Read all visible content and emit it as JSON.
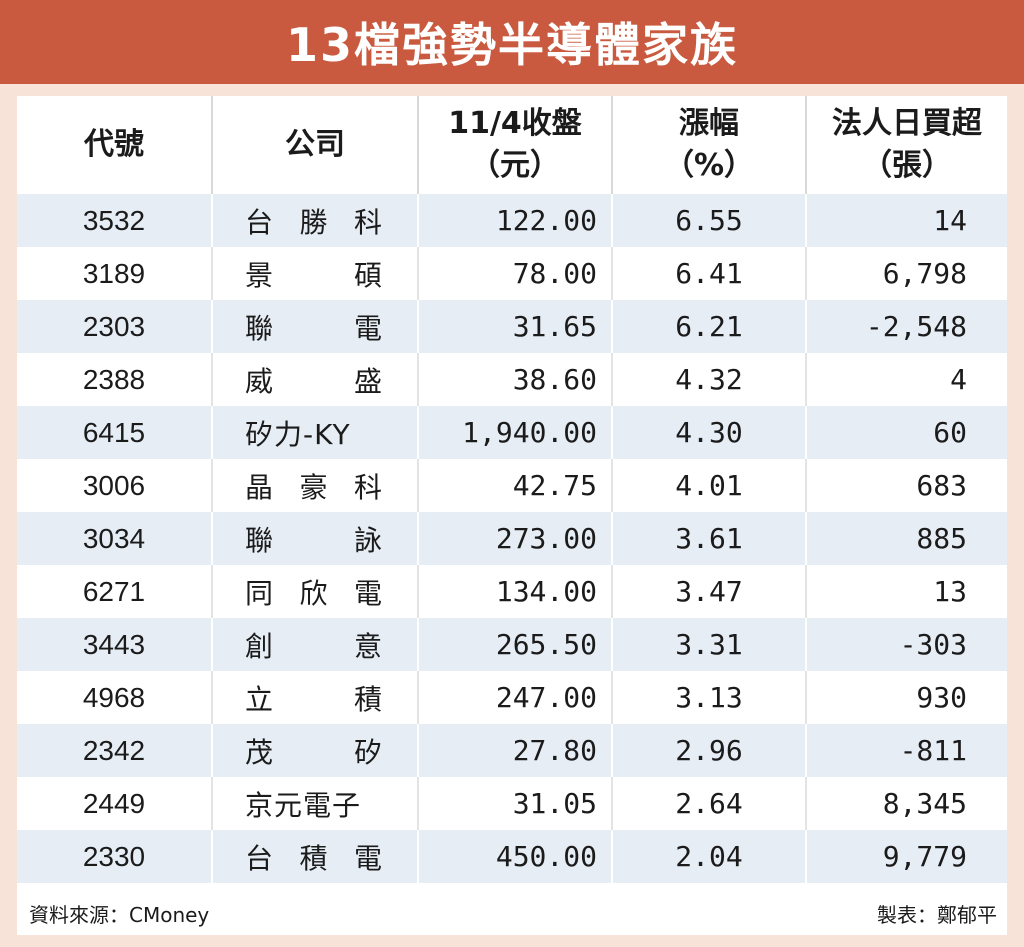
{
  "title": "13檔強勢半導體家族",
  "headers": {
    "code": "代號",
    "company": "公司",
    "close_line1": "11/4收盤",
    "close_line2": "（元）",
    "change_line1": "漲幅",
    "change_line2": "（%）",
    "inst_line1": "法人日買超",
    "inst_line2": "（張）"
  },
  "rows": [
    {
      "code": "3532",
      "name": "台勝科",
      "close": "122.00",
      "change": "6.55",
      "inst": "14"
    },
    {
      "code": "3189",
      "name": "景碩",
      "close": "78.00",
      "change": "6.41",
      "inst": "6,798"
    },
    {
      "code": "2303",
      "name": "聯電",
      "close": "31.65",
      "change": "6.21",
      "inst": "-2,548"
    },
    {
      "code": "2388",
      "name": "威盛",
      "close": "38.60",
      "change": "4.32",
      "inst": "4"
    },
    {
      "code": "6415",
      "name": "矽力-KY",
      "close": "1,940.00",
      "change": "4.30",
      "inst": "60"
    },
    {
      "code": "3006",
      "name": "晶豪科",
      "close": "42.75",
      "change": "4.01",
      "inst": "683"
    },
    {
      "code": "3034",
      "name": "聯詠",
      "close": "273.00",
      "change": "3.61",
      "inst": "885"
    },
    {
      "code": "6271",
      "name": "同欣電",
      "close": "134.00",
      "change": "3.47",
      "inst": "13"
    },
    {
      "code": "3443",
      "name": "創意",
      "close": "265.50",
      "change": "3.31",
      "inst": "-303"
    },
    {
      "code": "4968",
      "name": "立積",
      "close": "247.00",
      "change": "3.13",
      "inst": "930"
    },
    {
      "code": "2342",
      "name": "茂矽",
      "close": "27.80",
      "change": "2.96",
      "inst": "-811"
    },
    {
      "code": "2449",
      "name": "京元電子",
      "close": "31.05",
      "change": "2.64",
      "inst": "8,345"
    },
    {
      "code": "2330",
      "name": "台積電",
      "close": "450.00",
      "change": "2.04",
      "inst": "9,779"
    }
  ],
  "footer": {
    "source": "資料來源：CMoney",
    "byline": "製表：鄭郁平"
  },
  "colors": {
    "title_bar": "#c95a3f",
    "page_bg": "#f7e3d7",
    "stripe": "#e6edf5"
  }
}
